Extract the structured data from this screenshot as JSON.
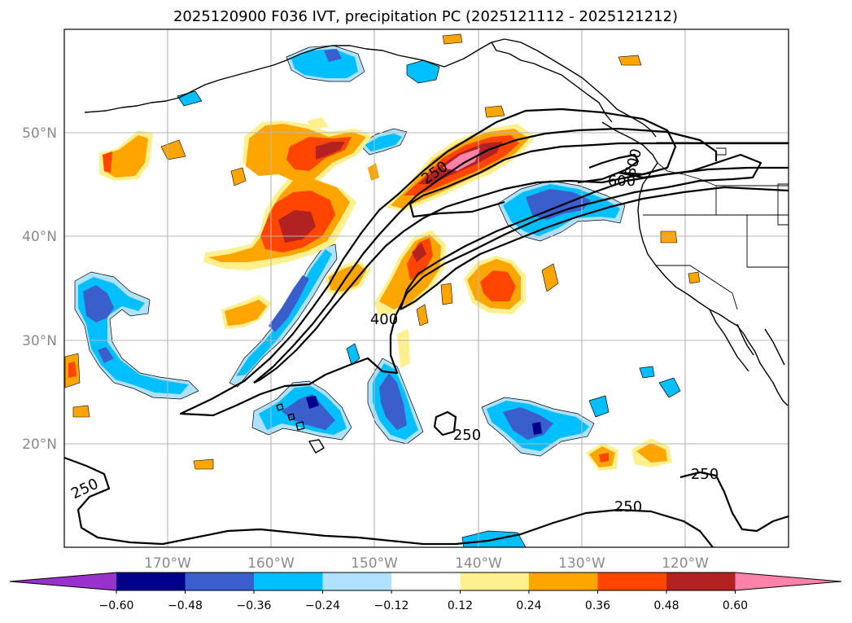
{
  "title": "2025120900 F036 IVT, precipitation PC (2025121112 - 2025121212)",
  "map": {
    "projection": "PlateCarree",
    "lon_range": [
      -180,
      -110
    ],
    "lat_range": [
      10,
      60
    ],
    "gridlines": true,
    "lon_ticks": [
      "170°W",
      "160°W",
      "150°W",
      "140°W",
      "130°W",
      "120°W"
    ],
    "lat_ticks": [
      "50°N",
      "40°N",
      "30°N",
      "20°N"
    ]
  },
  "ivt_contour_labels": [
    "250",
    "250",
    "250",
    "250",
    "400",
    "600",
    "800"
  ],
  "colorbar": {
    "ticks": [
      "−0.60",
      "−0.48",
      "−0.36",
      "−0.24",
      "−0.12",
      "0.12",
      "0.24",
      "0.36",
      "0.48",
      "0.60"
    ],
    "levels": [
      -0.6,
      -0.48,
      -0.36,
      -0.24,
      -0.12,
      0.12,
      0.24,
      0.36,
      0.48,
      0.6
    ],
    "colors": [
      "#9932cc",
      "#00008b",
      "#3a5fcd",
      "#00bfff",
      "#b0e2ff",
      "#ffffff",
      "#fff08f",
      "#ffa500",
      "#ff4500",
      "#b22222",
      "#ff82ab"
    ],
    "extend": "both"
  },
  "legend_colors": {
    "neg_1": "#b0e2ff",
    "neg_2": "#00bfff",
    "neg_3": "#3a5fcd",
    "neg_4": "#00008b",
    "pos_1": "#fff08f",
    "pos_2": "#ffa500",
    "pos_3": "#ff4500",
    "pos_4": "#b22222",
    "pos_5": "#ff82ab"
  }
}
